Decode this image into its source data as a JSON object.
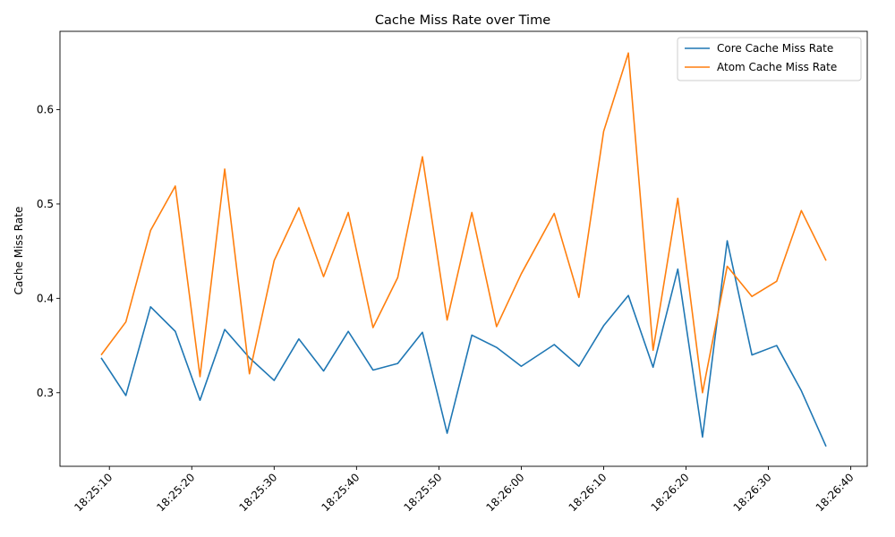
{
  "chart_data": {
    "type": "line",
    "title": "Cache Miss Rate over Time",
    "xlabel": "",
    "ylabel": "Cache Miss Rate",
    "x": [
      "18:25:09",
      "18:25:12",
      "18:25:15",
      "18:25:18",
      "18:25:21",
      "18:25:24",
      "18:25:27",
      "18:25:30",
      "18:25:33",
      "18:25:36",
      "18:25:39",
      "18:25:42",
      "18:25:45",
      "18:25:48",
      "18:25:51",
      "18:25:54",
      "18:25:57",
      "18:26:00",
      "18:26:04",
      "18:26:07",
      "18:26:10",
      "18:26:13",
      "18:26:16",
      "18:26:19",
      "18:26:22",
      "18:26:25",
      "18:26:28",
      "18:26:31",
      "18:26:34",
      "18:26:37"
    ],
    "x_ticks": [
      "18:25:10",
      "18:25:20",
      "18:25:30",
      "18:25:40",
      "18:25:50",
      "18:26:00",
      "18:26:10",
      "18:26:20",
      "18:26:30",
      "18:26:40"
    ],
    "xlim": [
      "18:25:04",
      "18:26:42"
    ],
    "y_ticks": [
      0.3,
      0.4,
      0.5,
      0.6
    ],
    "ylim": [
      0.222,
      0.683
    ],
    "grid": false,
    "legend_position": "top-right",
    "series": [
      {
        "name": "Core Cache Miss Rate",
        "color": "#1f77b4",
        "values": [
          0.337,
          0.297,
          0.391,
          0.365,
          0.292,
          0.367,
          0.337,
          0.313,
          0.357,
          0.323,
          0.365,
          0.324,
          0.331,
          0.364,
          0.257,
          0.361,
          0.348,
          0.328,
          0.351,
          0.328,
          0.371,
          0.403,
          0.327,
          0.431,
          0.253,
          0.461,
          0.34,
          0.35,
          0.302,
          0.243
        ]
      },
      {
        "name": "Atom Cache Miss Rate",
        "color": "#ff7f0e",
        "values": [
          0.34,
          0.375,
          0.472,
          0.519,
          0.317,
          0.537,
          0.32,
          0.44,
          0.496,
          0.423,
          0.491,
          0.369,
          0.422,
          0.55,
          0.377,
          0.491,
          0.37,
          0.426,
          0.49,
          0.401,
          0.577,
          0.66,
          0.345,
          0.506,
          0.3,
          0.434,
          0.402,
          0.418,
          0.493,
          0.44
        ]
      }
    ]
  }
}
